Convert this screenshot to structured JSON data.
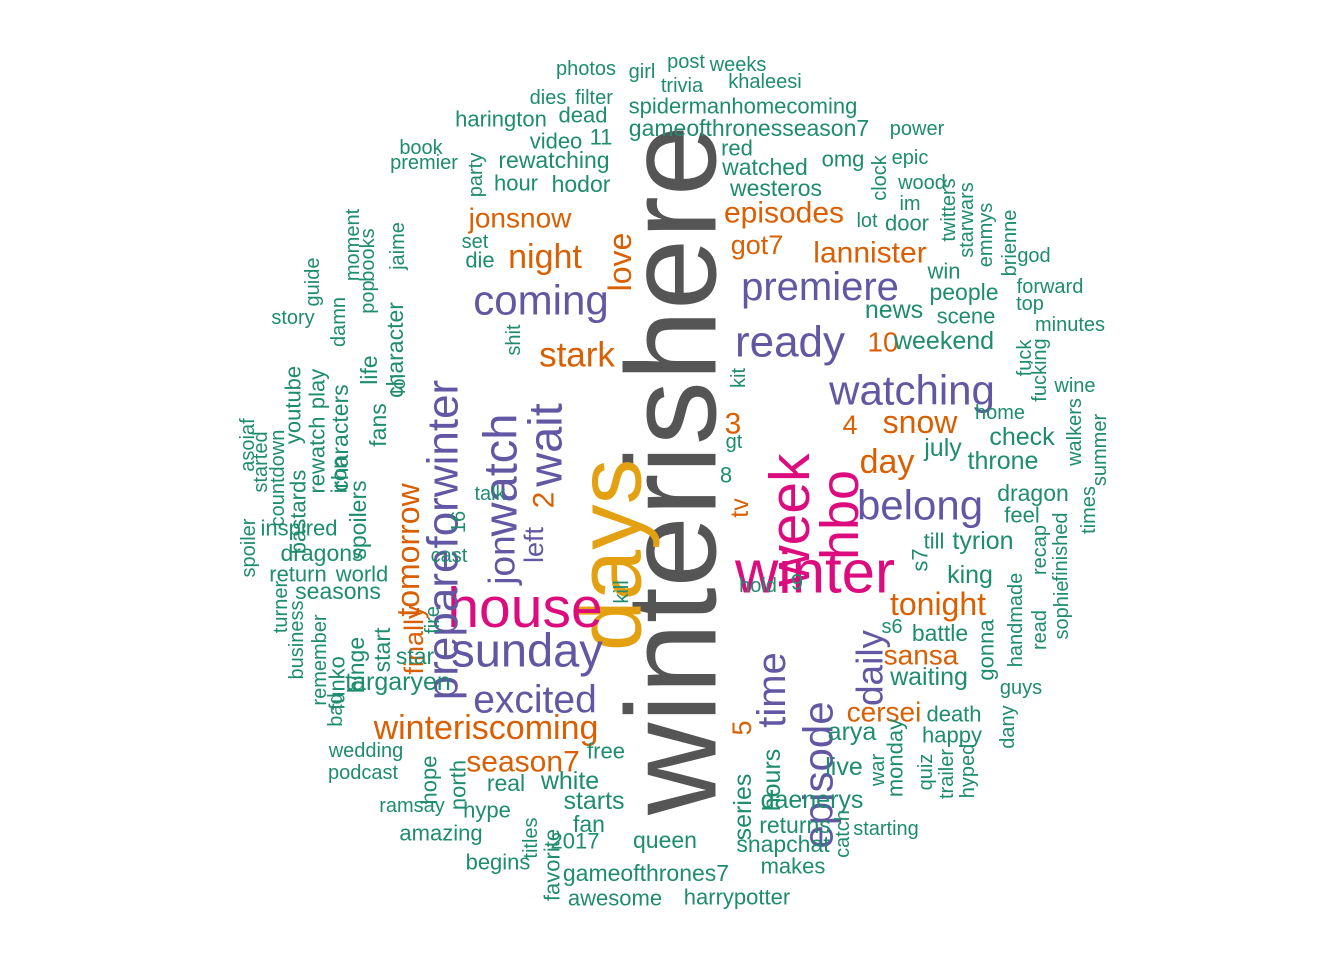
{
  "colors": {
    "gray": "#555555",
    "orange": "#D95F02",
    "purple": "#6257A3",
    "magenta": "#DC0C7F",
    "gold": "#E3A010",
    "green": "#1E8C6E"
  },
  "words": [
    {
      "text": "winterishere",
      "weight": 100,
      "color": "gray"
    },
    {
      "text": "days",
      "weight": 48,
      "color": "gold"
    },
    {
      "text": "winter",
      "weight": 30,
      "color": "magenta"
    },
    {
      "text": "week",
      "weight": 28,
      "color": "magenta"
    },
    {
      "text": "house",
      "weight": 28,
      "color": "magenta"
    },
    {
      "text": "hbo",
      "weight": 26,
      "color": "magenta"
    },
    {
      "text": "watch",
      "weight": 22,
      "color": "purple"
    },
    {
      "text": "sunday",
      "weight": 22,
      "color": "purple"
    },
    {
      "text": "wait",
      "weight": 22,
      "color": "purple"
    },
    {
      "text": "prepareforwinter",
      "weight": 20,
      "color": "purple"
    },
    {
      "text": "ready",
      "weight": 20,
      "color": "purple"
    },
    {
      "text": "watching",
      "weight": 19,
      "color": "purple"
    },
    {
      "text": "belong",
      "weight": 19,
      "color": "purple"
    },
    {
      "text": "coming",
      "weight": 19,
      "color": "purple"
    },
    {
      "text": "episode",
      "weight": 19,
      "color": "purple"
    },
    {
      "text": "time",
      "weight": 18,
      "color": "purple"
    },
    {
      "text": "premiere",
      "weight": 18,
      "color": "purple"
    },
    {
      "text": "excited",
      "weight": 17,
      "color": "purple"
    },
    {
      "text": "daily",
      "weight": 16,
      "color": "purple"
    },
    {
      "text": "jon",
      "weight": 16,
      "color": "purple"
    },
    {
      "text": "stark",
      "weight": 15,
      "color": "orange"
    },
    {
      "text": "winteriscoming",
      "weight": 14,
      "color": "orange"
    },
    {
      "text": "night",
      "weight": 14,
      "color": "orange"
    },
    {
      "text": "day",
      "weight": 14,
      "color": "orange"
    },
    {
      "text": "love",
      "weight": 13,
      "color": "orange"
    },
    {
      "text": "snow",
      "weight": 13,
      "color": "orange"
    },
    {
      "text": "tonight",
      "weight": 13,
      "color": "orange"
    },
    {
      "text": "tomorrow",
      "weight": 13,
      "color": "orange"
    },
    {
      "text": "season7",
      "weight": 12,
      "color": "orange"
    },
    {
      "text": "2",
      "weight": 12,
      "color": "orange"
    },
    {
      "text": "3",
      "weight": 12,
      "color": "orange"
    },
    {
      "text": "lannister",
      "weight": 12,
      "color": "orange"
    },
    {
      "text": "episodes",
      "weight": 12,
      "color": "orange"
    },
    {
      "text": "jonsnow",
      "weight": 11,
      "color": "orange"
    },
    {
      "text": "cersei",
      "weight": 11,
      "color": "orange"
    },
    {
      "text": "sansa",
      "weight": 11,
      "color": "orange"
    },
    {
      "text": "10",
      "weight": 11,
      "color": "orange"
    },
    {
      "text": "got7",
      "weight": 10,
      "color": "orange"
    },
    {
      "text": "finally",
      "weight": 10,
      "color": "orange"
    },
    {
      "text": "5",
      "weight": 10,
      "color": "orange"
    },
    {
      "text": "4",
      "weight": 10,
      "color": "orange"
    },
    {
      "text": "tv",
      "weight": 9,
      "color": "orange"
    },
    {
      "text": "left",
      "weight": 10,
      "color": "purple"
    },
    {
      "text": "news",
      "weight": 9,
      "color": "green"
    },
    {
      "text": "weekend",
      "weight": 9,
      "color": "green"
    },
    {
      "text": "check",
      "weight": 9,
      "color": "green"
    },
    {
      "text": "throne",
      "weight": 9,
      "color": "green"
    },
    {
      "text": "july",
      "weight": 9,
      "color": "green"
    },
    {
      "text": "dragon",
      "weight": 8,
      "color": "green"
    },
    {
      "text": "tyrion",
      "weight": 9,
      "color": "green"
    },
    {
      "text": "king",
      "weight": 9,
      "color": "green"
    },
    {
      "text": "battle",
      "weight": 8,
      "color": "green"
    },
    {
      "text": "waiting",
      "weight": 9,
      "color": "green"
    },
    {
      "text": "arya",
      "weight": 9,
      "color": "green"
    },
    {
      "text": "live",
      "weight": 9,
      "color": "green"
    },
    {
      "text": "daenerys",
      "weight": 9,
      "color": "green"
    },
    {
      "text": "hours",
      "weight": 9,
      "color": "green"
    },
    {
      "text": "series",
      "weight": 9,
      "color": "green"
    },
    {
      "text": "snapchat",
      "weight": 8,
      "color": "green"
    },
    {
      "text": "returns",
      "weight": 8,
      "color": "green"
    },
    {
      "text": "white",
      "weight": 9,
      "color": "green"
    },
    {
      "text": "starts",
      "weight": 9,
      "color": "green"
    },
    {
      "text": "real",
      "weight": 8,
      "color": "green"
    },
    {
      "text": "fan",
      "weight": 8,
      "color": "green"
    },
    {
      "text": "queen",
      "weight": 8,
      "color": "green"
    },
    {
      "text": "gameofthrones7",
      "weight": 8,
      "color": "green"
    },
    {
      "text": "awesome",
      "weight": 7,
      "color": "green"
    },
    {
      "text": "harrypotter",
      "weight": 7,
      "color": "green"
    },
    {
      "text": "makes",
      "weight": 7,
      "color": "green"
    },
    {
      "text": "favorite",
      "weight": 7,
      "color": "green"
    },
    {
      "text": "2017",
      "weight": 7,
      "color": "green"
    },
    {
      "text": "titles",
      "weight": 6,
      "color": "green"
    },
    {
      "text": "begins",
      "weight": 7,
      "color": "green"
    },
    {
      "text": "hype",
      "weight": 7,
      "color": "green"
    },
    {
      "text": "amazing",
      "weight": 7,
      "color": "green"
    },
    {
      "text": "ramsay",
      "weight": 6,
      "color": "green"
    },
    {
      "text": "hope",
      "weight": 7,
      "color": "green"
    },
    {
      "text": "north",
      "weight": 7,
      "color": "green"
    },
    {
      "text": "free",
      "weight": 7,
      "color": "green"
    },
    {
      "text": "podcast",
      "weight": 6,
      "color": "green"
    },
    {
      "text": "wedding",
      "weight": 6,
      "color": "green"
    },
    {
      "text": "targaryen",
      "weight": 9,
      "color": "green"
    },
    {
      "text": "star",
      "weight": 8,
      "color": "green"
    },
    {
      "text": "start",
      "weight": 8,
      "color": "green"
    },
    {
      "text": "binge",
      "weight": 8,
      "color": "green"
    },
    {
      "text": "funko",
      "weight": 7,
      "color": "green"
    },
    {
      "text": "seasons",
      "weight": 8,
      "color": "green"
    },
    {
      "text": "dragons",
      "weight": 8,
      "color": "green"
    },
    {
      "text": "return",
      "weight": 7,
      "color": "green"
    },
    {
      "text": "world",
      "weight": 7,
      "color": "green"
    },
    {
      "text": "inspired",
      "weight": 7,
      "color": "green"
    },
    {
      "text": "spoilers",
      "weight": 8,
      "color": "green"
    },
    {
      "text": "fans",
      "weight": 8,
      "color": "green"
    },
    {
      "text": "life",
      "weight": 8,
      "color": "green"
    },
    {
      "text": "character",
      "weight": 8,
      "color": "green"
    },
    {
      "text": "characters",
      "weight": 8,
      "color": "green"
    },
    {
      "text": "iron",
      "weight": 7,
      "color": "green"
    },
    {
      "text": "rewatch",
      "weight": 7,
      "color": "green"
    },
    {
      "text": "bastards",
      "weight": 7,
      "color": "green"
    },
    {
      "text": "youtube",
      "weight": 7,
      "color": "green"
    },
    {
      "text": "play",
      "weight": 7,
      "color": "green"
    },
    {
      "text": "countdown",
      "weight": 6,
      "color": "green"
    },
    {
      "text": "started",
      "weight": 6,
      "color": "green"
    },
    {
      "text": "asoiaf",
      "weight": 6,
      "color": "green"
    },
    {
      "text": "spoiler",
      "weight": 6,
      "color": "green"
    },
    {
      "text": "story",
      "weight": 6,
      "color": "green"
    },
    {
      "text": "guide",
      "weight": 6,
      "color": "green"
    },
    {
      "text": "damn",
      "weight": 6,
      "color": "green"
    },
    {
      "text": "moment",
      "weight": 6,
      "color": "green"
    },
    {
      "text": "pop",
      "weight": 6,
      "color": "green"
    },
    {
      "text": "books",
      "weight": 6,
      "color": "green"
    },
    {
      "text": "jaime",
      "weight": 6,
      "color": "green"
    },
    {
      "text": "lol",
      "weight": 6,
      "color": "green"
    },
    {
      "text": "book",
      "weight": 6,
      "color": "green"
    },
    {
      "text": "premier",
      "weight": 6,
      "color": "green"
    },
    {
      "text": "party",
      "weight": 6,
      "color": "green"
    },
    {
      "text": "hour",
      "weight": 7,
      "color": "green"
    },
    {
      "text": "hodor",
      "weight": 8,
      "color": "green"
    },
    {
      "text": "rewatching",
      "weight": 8,
      "color": "green"
    },
    {
      "text": "video",
      "weight": 7,
      "color": "green"
    },
    {
      "text": "11",
      "weight": 7,
      "color": "green"
    },
    {
      "text": "harington",
      "weight": 7,
      "color": "green"
    },
    {
      "text": "dies",
      "weight": 6,
      "color": "green"
    },
    {
      "text": "filter",
      "weight": 6,
      "color": "green"
    },
    {
      "text": "dead",
      "weight": 7,
      "color": "green"
    },
    {
      "text": "photos",
      "weight": 6,
      "color": "green"
    },
    {
      "text": "girl",
      "weight": 6,
      "color": "green"
    },
    {
      "text": "post",
      "weight": 6,
      "color": "green"
    },
    {
      "text": "weeks",
      "weight": 6,
      "color": "green"
    },
    {
      "text": "trivia",
      "weight": 6,
      "color": "green"
    },
    {
      "text": "khaleesi",
      "weight": 6,
      "color": "green"
    },
    {
      "text": "spidermanhomecoming",
      "weight": 7,
      "color": "green"
    },
    {
      "text": "gameofthronesseason7",
      "weight": 8,
      "color": "green"
    },
    {
      "text": "red",
      "weight": 7,
      "color": "green"
    },
    {
      "text": "watched",
      "weight": 8,
      "color": "green"
    },
    {
      "text": "westeros",
      "weight": 8,
      "color": "green"
    },
    {
      "text": "omg",
      "weight": 7,
      "color": "green"
    },
    {
      "text": "power",
      "weight": 6,
      "color": "green"
    },
    {
      "text": "epic",
      "weight": 6,
      "color": "green"
    },
    {
      "text": "clock",
      "weight": 6,
      "color": "green"
    },
    {
      "text": "wood",
      "weight": 6,
      "color": "green"
    },
    {
      "text": "im",
      "weight": 6,
      "color": "green"
    },
    {
      "text": "lot",
      "weight": 6,
      "color": "green"
    },
    {
      "text": "door",
      "weight": 7,
      "color": "green"
    },
    {
      "text": "twitters",
      "weight": 6,
      "color": "green"
    },
    {
      "text": "starwars",
      "weight": 6,
      "color": "green"
    },
    {
      "text": "emmys",
      "weight": 6,
      "color": "green"
    },
    {
      "text": "brienne",
      "weight": 6,
      "color": "green"
    },
    {
      "text": "god",
      "weight": 6,
      "color": "green"
    },
    {
      "text": "win",
      "weight": 7,
      "color": "green"
    },
    {
      "text": "people",
      "weight": 8,
      "color": "green"
    },
    {
      "text": "scene",
      "weight": 7,
      "color": "green"
    },
    {
      "text": "forward",
      "weight": 6,
      "color": "green"
    },
    {
      "text": "top",
      "weight": 6,
      "color": "green"
    },
    {
      "text": "minutes",
      "weight": 6,
      "color": "green"
    },
    {
      "text": "fuck",
      "weight": 6,
      "color": "green"
    },
    {
      "text": "fucking",
      "weight": 6,
      "color": "green"
    },
    {
      "text": "wine",
      "weight": 6,
      "color": "green"
    },
    {
      "text": "home",
      "weight": 6,
      "color": "green"
    },
    {
      "text": "walkers",
      "weight": 6,
      "color": "green"
    },
    {
      "text": "summer",
      "weight": 6,
      "color": "green"
    },
    {
      "text": "times",
      "weight": 6,
      "color": "green"
    },
    {
      "text": "feel",
      "weight": 7,
      "color": "green"
    },
    {
      "text": "finished",
      "weight": 6,
      "color": "green"
    },
    {
      "text": "recap",
      "weight": 6,
      "color": "green"
    },
    {
      "text": "sophie",
      "weight": 6,
      "color": "green"
    },
    {
      "text": "read",
      "weight": 6,
      "color": "green"
    },
    {
      "text": "handmade",
      "weight": 6,
      "color": "green"
    },
    {
      "text": "guys",
      "weight": 6,
      "color": "green"
    },
    {
      "text": "gonna",
      "weight": 7,
      "color": "green"
    },
    {
      "text": "dany",
      "weight": 6,
      "color": "green"
    },
    {
      "text": "death",
      "weight": 7,
      "color": "green"
    },
    {
      "text": "happy",
      "weight": 7,
      "color": "green"
    },
    {
      "text": "hyped",
      "weight": 6,
      "color": "green"
    },
    {
      "text": "trailer",
      "weight": 6,
      "color": "green"
    },
    {
      "text": "quiz",
      "weight": 6,
      "color": "green"
    },
    {
      "text": "monday",
      "weight": 7,
      "color": "green"
    },
    {
      "text": "war",
      "weight": 6,
      "color": "green"
    },
    {
      "text": "catch",
      "weight": 6,
      "color": "green"
    },
    {
      "text": "starting",
      "weight": 6,
      "color": "green"
    },
    {
      "text": "s6",
      "weight": 6,
      "color": "green"
    },
    {
      "text": "s7",
      "weight": 7,
      "color": "green"
    },
    {
      "text": "till",
      "weight": 7,
      "color": "green"
    },
    {
      "text": "hold",
      "weight": 6,
      "color": "green"
    },
    {
      "text": "9",
      "weight": 7,
      "color": "green"
    },
    {
      "text": "8",
      "weight": 7,
      "color": "green"
    },
    {
      "text": "gt",
      "weight": 6,
      "color": "green"
    },
    {
      "text": "kit",
      "weight": 6,
      "color": "green"
    },
    {
      "text": "shit",
      "weight": 6,
      "color": "green"
    },
    {
      "text": "talk",
      "weight": 6,
      "color": "green"
    },
    {
      "text": "16",
      "weight": 6,
      "color": "green"
    },
    {
      "text": "cast",
      "weight": 6,
      "color": "green"
    },
    {
      "text": "kill",
      "weight": 6,
      "color": "green"
    },
    {
      "text": "fire",
      "weight": 6,
      "color": "green"
    },
    {
      "text": "die",
      "weight": 7,
      "color": "green"
    },
    {
      "text": "set",
      "weight": 6,
      "color": "green"
    },
    {
      "text": "turner",
      "weight": 6,
      "color": "green"
    },
    {
      "text": "business",
      "weight": 6,
      "color": "green"
    },
    {
      "text": "remember",
      "weight": 6,
      "color": "green"
    },
    {
      "text": "bad",
      "weight": 6,
      "color": "green"
    }
  ]
}
